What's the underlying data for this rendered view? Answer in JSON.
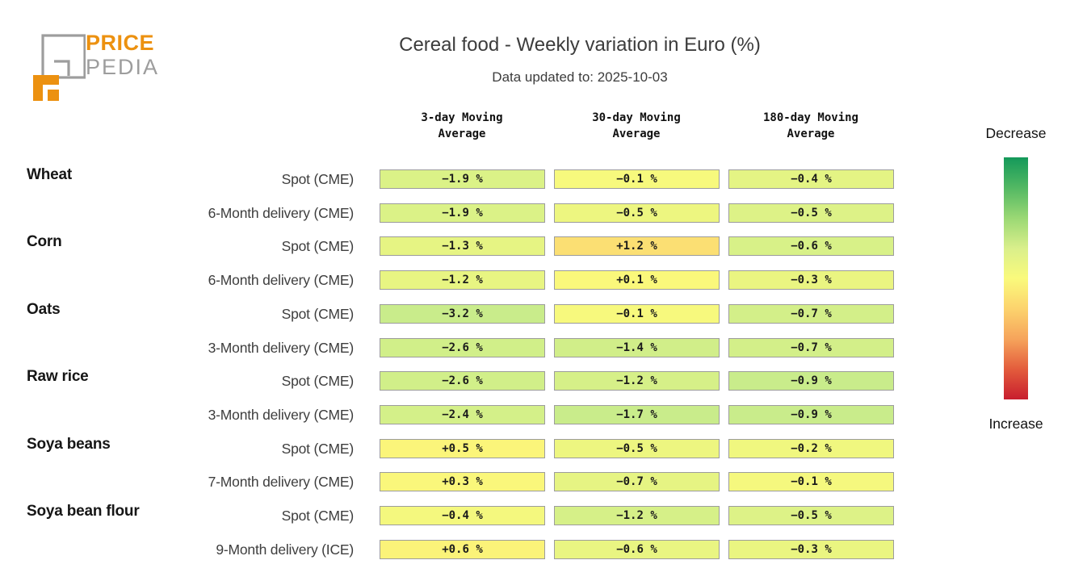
{
  "logo": {
    "brand_top": "PRICE",
    "brand_bottom": "PEDIA",
    "orange": "#EC9110",
    "gray": "#9D9D9D"
  },
  "header": {
    "title": "Cereal food - Weekly variation in Euro (%)",
    "subtitle": "Data updated to: 2025-10-03"
  },
  "legend": {
    "decrease_label": "Decrease",
    "increase_label": "Increase",
    "gradient_top_to_bottom": [
      "#14995A",
      "#52B863",
      "#9AD874",
      "#D9EF8B",
      "#FAFA7C",
      "#FCD36D",
      "#F6A45B",
      "#E35C3C",
      "#C81E2E"
    ]
  },
  "chart_data": {
    "type": "heatmap",
    "title": "Cereal food - Weekly variation in Euro (%)",
    "subtitle": "Data updated to: 2025-10-03",
    "unit": "%",
    "columns": [
      "3-day Moving Average",
      "30-day Moving Average",
      "180-day Moving Average"
    ],
    "rows": [
      {
        "group": "Wheat",
        "instrument": "Spot (CME)",
        "values": [
          -1.9,
          -0.1,
          -0.4
        ]
      },
      {
        "group": "",
        "instrument": "6-Month delivery (CME)",
        "values": [
          -1.9,
          -0.5,
          -0.5
        ]
      },
      {
        "group": "Corn",
        "instrument": "Spot (CME)",
        "values": [
          -1.3,
          1.2,
          -0.6
        ]
      },
      {
        "group": "",
        "instrument": "6-Month delivery (CME)",
        "values": [
          -1.2,
          0.1,
          -0.3
        ]
      },
      {
        "group": "Oats",
        "instrument": "Spot (CME)",
        "values": [
          -3.2,
          -0.1,
          -0.7
        ]
      },
      {
        "group": "",
        "instrument": "3-Month delivery (CME)",
        "values": [
          -2.6,
          -1.4,
          -0.7
        ]
      },
      {
        "group": "Raw rice",
        "instrument": "Spot (CME)",
        "values": [
          -2.6,
          -1.2,
          -0.9
        ]
      },
      {
        "group": "",
        "instrument": "3-Month delivery (CME)",
        "values": [
          -2.4,
          -1.7,
          -0.9
        ]
      },
      {
        "group": "Soya beans",
        "instrument": "Spot (CME)",
        "values": [
          0.5,
          -0.5,
          -0.2
        ]
      },
      {
        "group": "",
        "instrument": "7-Month delivery (CME)",
        "values": [
          0.3,
          -0.7,
          -0.1
        ]
      },
      {
        "group": "Soya bean flour",
        "instrument": "Spot (CME)",
        "values": [
          -0.4,
          -1.2,
          -0.5
        ]
      },
      {
        "group": "",
        "instrument": "9-Month delivery (ICE)",
        "values": [
          0.6,
          -0.6,
          -0.3
        ]
      }
    ],
    "legend": {
      "top": "Decrease",
      "bottom": "Increase"
    },
    "heat_style": {
      "note": "each column normalized by its own max |value|; t = 0.35 * v / maxabs",
      "colormap_anchors": [
        {
          "t": -1.0,
          "color": "#1A9850"
        },
        {
          "t": -0.6,
          "color": "#8ED06F"
        },
        {
          "t": -0.35,
          "color": "#C9EC8B"
        },
        {
          "t": -0.2,
          "color": "#DCF287"
        },
        {
          "t": -0.1,
          "color": "#EDF680"
        },
        {
          "t": 0.0,
          "color": "#FAFA7C"
        },
        {
          "t": 0.1,
          "color": "#FBF078"
        },
        {
          "t": 0.2,
          "color": "#FBE474"
        },
        {
          "t": 0.35,
          "color": "#FBD471"
        },
        {
          "t": 0.6,
          "color": "#F79B57"
        },
        {
          "t": 1.0,
          "color": "#D7263C"
        }
      ],
      "cell_border": "#9C9C9C"
    }
  }
}
